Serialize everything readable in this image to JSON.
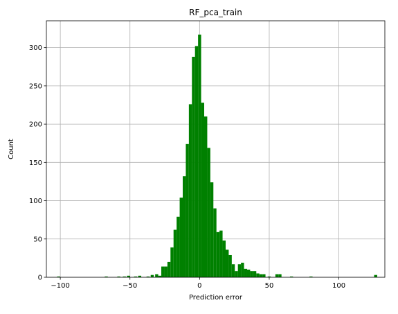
{
  "chart_data": {
    "type": "bar",
    "title": "RF_pca_train",
    "xlabel": "Prediction error",
    "ylabel": "Count",
    "xlim": [
      -110,
      133
    ],
    "ylim": [
      0,
      335
    ],
    "xticks": [
      -100,
      -50,
      0,
      50,
      100
    ],
    "yticks": [
      0,
      50,
      100,
      150,
      200,
      250,
      300
    ],
    "grid": true,
    "color": "#008000",
    "bin_width": 2.2,
    "bins": [
      {
        "x": -101.2,
        "count": 1
      },
      {
        "x": -67.0,
        "count": 1
      },
      {
        "x": -58.0,
        "count": 1
      },
      {
        "x": -54.0,
        "count": 1
      },
      {
        "x": -51.0,
        "count": 2
      },
      {
        "x": -46.0,
        "count": 1
      },
      {
        "x": -43.0,
        "count": 2
      },
      {
        "x": -37.0,
        "count": 1
      },
      {
        "x": -34.0,
        "count": 3
      },
      {
        "x": -30.8,
        "count": 4
      },
      {
        "x": -28.6,
        "count": 2
      },
      {
        "x": -26.4,
        "count": 14
      },
      {
        "x": -24.2,
        "count": 14
      },
      {
        "x": -22.0,
        "count": 20
      },
      {
        "x": -19.8,
        "count": 39
      },
      {
        "x": -17.6,
        "count": 62
      },
      {
        "x": -15.4,
        "count": 79
      },
      {
        "x": -13.2,
        "count": 104
      },
      {
        "x": -11.0,
        "count": 132
      },
      {
        "x": -8.8,
        "count": 174
      },
      {
        "x": -6.6,
        "count": 226
      },
      {
        "x": -4.4,
        "count": 288
      },
      {
        "x": -2.2,
        "count": 302
      },
      {
        "x": 0.0,
        "count": 317
      },
      {
        "x": 2.2,
        "count": 228
      },
      {
        "x": 4.4,
        "count": 210
      },
      {
        "x": 6.6,
        "count": 169
      },
      {
        "x": 8.8,
        "count": 124
      },
      {
        "x": 11.0,
        "count": 90
      },
      {
        "x": 13.2,
        "count": 59
      },
      {
        "x": 15.4,
        "count": 61
      },
      {
        "x": 17.6,
        "count": 48
      },
      {
        "x": 19.8,
        "count": 36
      },
      {
        "x": 22.0,
        "count": 29
      },
      {
        "x": 24.2,
        "count": 17
      },
      {
        "x": 26.4,
        "count": 8
      },
      {
        "x": 28.6,
        "count": 17
      },
      {
        "x": 30.8,
        "count": 19
      },
      {
        "x": 33.0,
        "count": 11
      },
      {
        "x": 35.2,
        "count": 10
      },
      {
        "x": 37.4,
        "count": 8
      },
      {
        "x": 39.6,
        "count": 8
      },
      {
        "x": 41.8,
        "count": 5
      },
      {
        "x": 44.0,
        "count": 4
      },
      {
        "x": 46.2,
        "count": 4
      },
      {
        "x": 50.0,
        "count": 1
      },
      {
        "x": 55.5,
        "count": 4
      },
      {
        "x": 57.7,
        "count": 4
      },
      {
        "x": 66.0,
        "count": 1
      },
      {
        "x": 80.0,
        "count": 1
      },
      {
        "x": 126.4,
        "count": 3
      }
    ]
  }
}
